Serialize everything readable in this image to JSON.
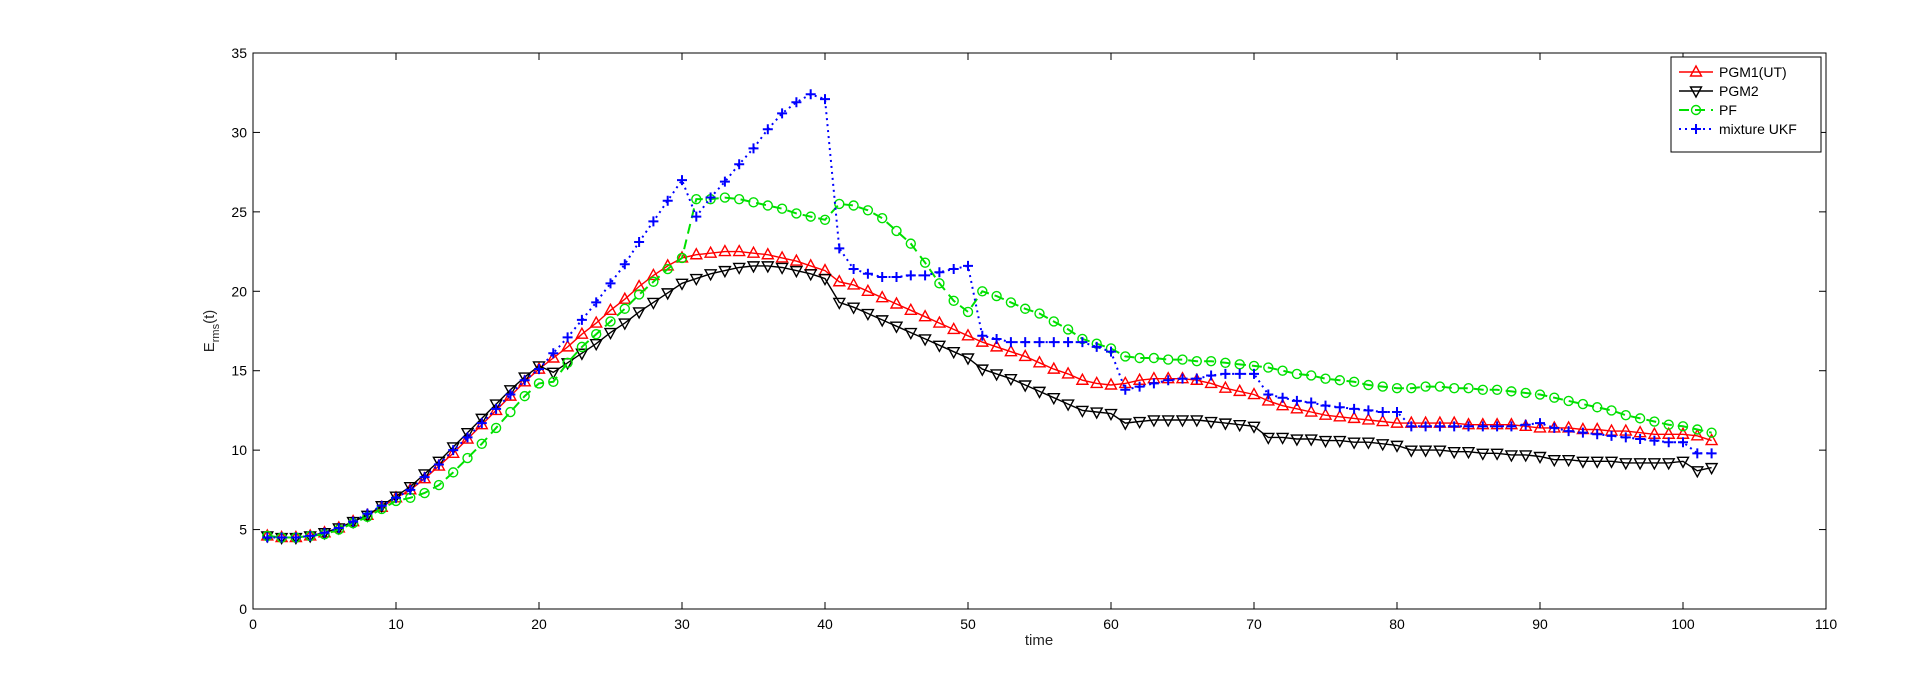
{
  "chart_data": {
    "type": "line",
    "title": "",
    "xlabel": "time",
    "ylabel_main": "E",
    "ylabel_sub": "rms",
    "ylabel_tail": "(t)",
    "xlim": [
      0,
      110
    ],
    "ylim": [
      0,
      35
    ],
    "xticks": [
      0,
      10,
      20,
      30,
      40,
      50,
      60,
      70,
      80,
      90,
      100,
      110
    ],
    "yticks": [
      0,
      5,
      10,
      15,
      20,
      25,
      30,
      35
    ],
    "grid": false,
    "legend_position": "top-right",
    "series": [
      {
        "name": "PGM1(UT)",
        "color": "#ff0000",
        "marker": "triangle-up",
        "line_style": "solid",
        "x": [
          1,
          2,
          3,
          4,
          5,
          6,
          7,
          8,
          9,
          10,
          11,
          12,
          13,
          14,
          15,
          16,
          17,
          18,
          19,
          20,
          21,
          22,
          23,
          24,
          25,
          26,
          27,
          28,
          29,
          30,
          31,
          32,
          33,
          34,
          35,
          36,
          37,
          38,
          39,
          40,
          41,
          42,
          43,
          44,
          45,
          46,
          47,
          48,
          49,
          50,
          51,
          52,
          53,
          54,
          55,
          56,
          57,
          58,
          59,
          60,
          61,
          62,
          63,
          64,
          65,
          66,
          67,
          68,
          69,
          70,
          71,
          72,
          73,
          74,
          75,
          76,
          77,
          78,
          79,
          80,
          81,
          82,
          83,
          84,
          85,
          86,
          87,
          88,
          89,
          90,
          91,
          92,
          93,
          94,
          95,
          96,
          97,
          98,
          99,
          100,
          101,
          102
        ],
        "y": [
          4.6,
          4.5,
          4.5,
          4.6,
          4.8,
          5.1,
          5.5,
          5.9,
          6.4,
          7.0,
          7.5,
          8.2,
          9.0,
          9.8,
          10.7,
          11.6,
          12.5,
          13.4,
          14.3,
          15.1,
          15.8,
          16.5,
          17.3,
          18.0,
          18.8,
          19.5,
          20.3,
          21.0,
          21.6,
          22.1,
          22.3,
          22.4,
          22.5,
          22.5,
          22.4,
          22.3,
          22.1,
          21.9,
          21.6,
          21.3,
          20.6,
          20.4,
          20.0,
          19.6,
          19.2,
          18.8,
          18.4,
          18.0,
          17.6,
          17.2,
          16.8,
          16.5,
          16.2,
          15.9,
          15.5,
          15.1,
          14.8,
          14.4,
          14.2,
          14.1,
          14.2,
          14.4,
          14.5,
          14.5,
          14.5,
          14.4,
          14.2,
          13.9,
          13.7,
          13.5,
          13.1,
          12.8,
          12.6,
          12.4,
          12.2,
          12.1,
          12.0,
          11.9,
          11.8,
          11.7,
          11.7,
          11.7,
          11.7,
          11.7,
          11.6,
          11.6,
          11.6,
          11.6,
          11.5,
          11.4,
          11.4,
          11.4,
          11.3,
          11.3,
          11.2,
          11.2,
          11.1,
          11.0,
          11.0,
          11.0,
          10.9,
          10.6
        ]
      },
      {
        "name": "PGM2",
        "color": "#000000",
        "marker": "triangle-down",
        "line_style": "solid",
        "x": [
          1,
          2,
          3,
          4,
          5,
          6,
          7,
          8,
          9,
          10,
          11,
          12,
          13,
          14,
          15,
          16,
          17,
          18,
          19,
          20,
          21,
          22,
          23,
          24,
          25,
          26,
          27,
          28,
          29,
          30,
          31,
          32,
          33,
          34,
          35,
          36,
          37,
          38,
          39,
          40,
          41,
          42,
          43,
          44,
          45,
          46,
          47,
          48,
          49,
          50,
          51,
          52,
          53,
          54,
          55,
          56,
          57,
          58,
          59,
          60,
          61,
          62,
          63,
          64,
          65,
          66,
          67,
          68,
          69,
          70,
          71,
          72,
          73,
          74,
          75,
          76,
          77,
          78,
          79,
          80,
          81,
          82,
          83,
          84,
          85,
          86,
          87,
          88,
          89,
          90,
          91,
          92,
          93,
          94,
          95,
          96,
          97,
          98,
          99,
          100,
          101,
          102
        ],
        "y": [
          4.6,
          4.5,
          4.5,
          4.6,
          4.8,
          5.1,
          5.5,
          5.9,
          6.5,
          7.1,
          7.7,
          8.5,
          9.3,
          10.2,
          11.1,
          12.0,
          12.9,
          13.8,
          14.6,
          15.3,
          14.9,
          15.5,
          16.1,
          16.7,
          17.4,
          18.0,
          18.7,
          19.3,
          19.9,
          20.5,
          20.8,
          21.1,
          21.3,
          21.5,
          21.6,
          21.6,
          21.5,
          21.3,
          21.1,
          20.8,
          19.3,
          19.0,
          18.6,
          18.2,
          17.8,
          17.4,
          17.0,
          16.6,
          16.2,
          15.8,
          15.1,
          14.8,
          14.5,
          14.1,
          13.7,
          13.3,
          12.9,
          12.5,
          12.4,
          12.3,
          11.7,
          11.8,
          11.9,
          11.9,
          11.9,
          11.9,
          11.8,
          11.7,
          11.6,
          11.5,
          10.8,
          10.8,
          10.7,
          10.7,
          10.6,
          10.6,
          10.5,
          10.5,
          10.4,
          10.3,
          10.0,
          10.0,
          10.0,
          9.9,
          9.9,
          9.8,
          9.8,
          9.7,
          9.7,
          9.6,
          9.4,
          9.4,
          9.3,
          9.3,
          9.3,
          9.2,
          9.2,
          9.2,
          9.2,
          9.3,
          8.7,
          8.9
        ]
      },
      {
        "name": "PF",
        "color": "#00e000",
        "marker": "circle",
        "line_style": "dashed",
        "x": [
          1,
          2,
          3,
          4,
          5,
          6,
          7,
          8,
          9,
          10,
          11,
          12,
          13,
          14,
          15,
          16,
          17,
          18,
          19,
          20,
          21,
          22,
          23,
          24,
          25,
          26,
          27,
          28,
          29,
          30,
          31,
          32,
          33,
          34,
          35,
          36,
          37,
          38,
          39,
          40,
          41,
          42,
          43,
          44,
          45,
          46,
          47,
          48,
          49,
          50,
          51,
          52,
          53,
          54,
          55,
          56,
          57,
          58,
          59,
          60,
          61,
          62,
          63,
          64,
          65,
          66,
          67,
          68,
          69,
          70,
          71,
          72,
          73,
          74,
          75,
          76,
          77,
          78,
          79,
          80,
          81,
          82,
          83,
          84,
          85,
          86,
          87,
          88,
          89,
          90,
          91,
          92,
          93,
          94,
          95,
          96,
          97,
          98,
          99,
          100,
          101,
          102
        ],
        "y": [
          4.6,
          4.5,
          4.5,
          4.6,
          4.7,
          5.0,
          5.4,
          5.8,
          6.3,
          6.8,
          7.0,
          7.3,
          7.8,
          8.6,
          9.5,
          10.4,
          11.4,
          12.4,
          13.4,
          14.2,
          14.3,
          15.5,
          16.5,
          17.3,
          18.1,
          18.9,
          19.8,
          20.6,
          21.4,
          22.1,
          25.8,
          25.8,
          25.9,
          25.8,
          25.6,
          25.4,
          25.2,
          24.9,
          24.7,
          24.5,
          25.5,
          25.4,
          25.1,
          24.6,
          23.8,
          23.0,
          21.8,
          20.5,
          19.4,
          18.7,
          20.0,
          19.7,
          19.3,
          18.9,
          18.6,
          18.1,
          17.6,
          17.0,
          16.7,
          16.4,
          15.9,
          15.8,
          15.8,
          15.7,
          15.7,
          15.6,
          15.6,
          15.5,
          15.4,
          15.3,
          15.2,
          15.0,
          14.8,
          14.7,
          14.5,
          14.4,
          14.3,
          14.1,
          14.0,
          13.9,
          13.9,
          14.0,
          14.0,
          13.9,
          13.9,
          13.8,
          13.8,
          13.7,
          13.6,
          13.5,
          13.3,
          13.1,
          12.9,
          12.7,
          12.5,
          12.2,
          12.0,
          11.8,
          11.6,
          11.5,
          11.3,
          11.1
        ]
      },
      {
        "name": "mixture UKF",
        "color": "#0000ff",
        "marker": "plus",
        "line_style": "dotted",
        "x": [
          1,
          2,
          3,
          4,
          5,
          6,
          7,
          8,
          9,
          10,
          11,
          12,
          13,
          14,
          15,
          16,
          17,
          18,
          19,
          20,
          21,
          22,
          23,
          24,
          25,
          26,
          27,
          28,
          29,
          30,
          31,
          32,
          33,
          34,
          35,
          36,
          37,
          38,
          39,
          40,
          41,
          42,
          43,
          44,
          45,
          46,
          47,
          48,
          49,
          50,
          51,
          52,
          53,
          54,
          55,
          56,
          57,
          58,
          59,
          60,
          61,
          62,
          63,
          64,
          65,
          66,
          67,
          68,
          69,
          70,
          71,
          72,
          73,
          74,
          75,
          76,
          77,
          78,
          79,
          80,
          81,
          82,
          83,
          84,
          85,
          86,
          87,
          88,
          89,
          90,
          91,
          92,
          93,
          94,
          95,
          96,
          97,
          98,
          99,
          100,
          101,
          102
        ],
        "y": [
          4.5,
          4.5,
          4.5,
          4.6,
          4.8,
          5.1,
          5.5,
          6.0,
          6.5,
          7.0,
          7.5,
          8.3,
          9.1,
          10.0,
          10.8,
          11.7,
          12.6,
          13.5,
          14.4,
          15.1,
          16.1,
          17.1,
          18.2,
          19.3,
          20.5,
          21.7,
          23.1,
          24.4,
          25.7,
          27.0,
          24.7,
          25.9,
          26.9,
          28.0,
          29.0,
          30.2,
          31.2,
          31.9,
          32.4,
          32.1,
          22.7,
          21.4,
          21.1,
          20.9,
          20.9,
          21.0,
          21.0,
          21.2,
          21.4,
          21.6,
          17.2,
          17.0,
          16.8,
          16.8,
          16.8,
          16.8,
          16.8,
          16.8,
          16.5,
          16.2,
          13.8,
          14.0,
          14.2,
          14.4,
          14.5,
          14.5,
          14.7,
          14.8,
          14.8,
          14.8,
          13.5,
          13.3,
          13.1,
          13.0,
          12.8,
          12.7,
          12.6,
          12.5,
          12.4,
          12.4,
          11.5,
          11.5,
          11.5,
          11.5,
          11.5,
          11.5,
          11.5,
          11.5,
          11.6,
          11.7,
          11.4,
          11.2,
          11.1,
          11.0,
          10.9,
          10.8,
          10.7,
          10.6,
          10.5,
          10.5,
          9.8,
          9.8
        ]
      }
    ]
  }
}
